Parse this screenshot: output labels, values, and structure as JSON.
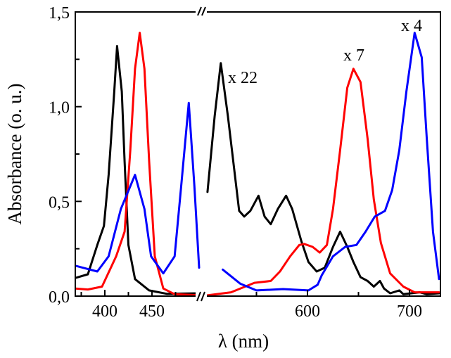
{
  "chart_data": {
    "type": "line",
    "title": "",
    "xlabel": "λ (nm)",
    "ylabel": "Absorbance (o. u.)",
    "ylim": [
      0,
      1.5
    ],
    "x_broken_axis": true,
    "xlim_segments": [
      [
        370,
        500
      ],
      [
        500,
        730
      ]
    ],
    "x_ticks": [
      {
        "value": 400,
        "label": "400"
      },
      {
        "value": 450,
        "label": "450"
      },
      {
        "value": 600,
        "label": "600"
      },
      {
        "value": 700,
        "label": "700"
      }
    ],
    "x_minor_ticks": [
      375,
      425,
      475,
      550,
      650
    ],
    "y_ticks": [
      {
        "value": 0,
        "label": "0,0"
      },
      {
        "value": 0.5,
        "label": "0,5"
      },
      {
        "value": 1.0,
        "label": "1,0"
      },
      {
        "value": 1.5,
        "label": "1,5"
      }
    ],
    "y_minor_ticks": [
      0.25,
      0.75,
      1.25
    ],
    "grid": false,
    "annotations": [
      {
        "text": "x 22",
        "series": "black"
      },
      {
        "text": "x 7",
        "series": "red"
      },
      {
        "text": "x 4",
        "series": "blue"
      }
    ],
    "series": [
      {
        "name": "black",
        "color": "#000000",
        "left": [
          [
            369,
            0.096
          ],
          [
            382,
            0.115
          ],
          [
            392,
            0.27
          ],
          [
            399,
            0.37
          ],
          [
            404,
            0.64
          ],
          [
            410,
            1.08
          ],
          [
            413,
            1.32
          ],
          [
            418,
            1.08
          ],
          [
            421,
            0.71
          ],
          [
            425,
            0.27
          ],
          [
            432,
            0.09
          ],
          [
            447,
            0.03
          ],
          [
            466,
            0.012
          ],
          [
            499,
            0.015
          ]
        ],
        "right": [
          [
            502,
            0.55
          ],
          [
            509,
            0.95
          ],
          [
            515,
            1.23
          ],
          [
            522,
            0.95
          ],
          [
            533,
            0.45
          ],
          [
            538,
            0.42
          ],
          [
            544,
            0.45
          ],
          [
            552,
            0.53
          ],
          [
            558,
            0.42
          ],
          [
            564,
            0.38
          ],
          [
            571,
            0.46
          ],
          [
            579,
            0.53
          ],
          [
            585,
            0.46
          ],
          [
            594,
            0.29
          ],
          [
            601,
            0.18
          ],
          [
            609,
            0.13
          ],
          [
            617,
            0.15
          ],
          [
            625,
            0.26
          ],
          [
            632,
            0.34
          ],
          [
            639,
            0.26
          ],
          [
            645,
            0.18
          ],
          [
            652,
            0.1
          ],
          [
            659,
            0.08
          ],
          [
            665,
            0.05
          ],
          [
            671,
            0.08
          ],
          [
            675,
            0.04
          ],
          [
            681,
            0.015
          ],
          [
            690,
            0.03
          ],
          [
            694,
            0.01
          ],
          [
            710,
            0.02
          ],
          [
            717,
            0.01
          ],
          [
            729,
            0.015
          ]
        ]
      },
      {
        "name": "red",
        "color": "#ff0000",
        "left": [
          [
            369,
            0.04
          ],
          [
            382,
            0.035
          ],
          [
            397,
            0.05
          ],
          [
            412,
            0.21
          ],
          [
            421,
            0.34
          ],
          [
            427,
            0.77
          ],
          [
            432,
            1.2
          ],
          [
            437,
            1.39
          ],
          [
            442,
            1.2
          ],
          [
            447,
            0.71
          ],
          [
            453,
            0.21
          ],
          [
            462,
            0.04
          ],
          [
            474,
            0.01
          ],
          [
            499,
            0.005
          ]
        ],
        "right": [
          [
            502,
            0.004
          ],
          [
            525,
            0.02
          ],
          [
            548,
            0.07
          ],
          [
            564,
            0.08
          ],
          [
            573,
            0.13
          ],
          [
            583,
            0.21
          ],
          [
            592,
            0.27
          ],
          [
            597,
            0.275
          ],
          [
            605,
            0.26
          ],
          [
            612,
            0.23
          ],
          [
            619,
            0.27
          ],
          [
            625,
            0.46
          ],
          [
            632,
            0.77
          ],
          [
            639,
            1.1
          ],
          [
            645,
            1.2
          ],
          [
            652,
            1.13
          ],
          [
            659,
            0.83
          ],
          [
            665,
            0.51
          ],
          [
            672,
            0.28
          ],
          [
            681,
            0.12
          ],
          [
            694,
            0.05
          ],
          [
            705,
            0.02
          ],
          [
            729,
            0.02
          ]
        ]
      },
      {
        "name": "blue",
        "color": "#0000ff",
        "left": [
          [
            369,
            0.16
          ],
          [
            392,
            0.13
          ],
          [
            404,
            0.21
          ],
          [
            417,
            0.46
          ],
          [
            432,
            0.64
          ],
          [
            442,
            0.46
          ],
          [
            449,
            0.21
          ],
          [
            462,
            0.12
          ],
          [
            474,
            0.21
          ],
          [
            481,
            0.58
          ],
          [
            489,
            1.02
          ],
          [
            495,
            0.58
          ],
          [
            500,
            0.15
          ]
        ],
        "right": [
          [
            517,
            0.14
          ],
          [
            534,
            0.066
          ],
          [
            550,
            0.03
          ],
          [
            576,
            0.037
          ],
          [
            601,
            0.03
          ],
          [
            610,
            0.06
          ],
          [
            614,
            0.11
          ],
          [
            625,
            0.21
          ],
          [
            637,
            0.26
          ],
          [
            648,
            0.27
          ],
          [
            657,
            0.34
          ],
          [
            666,
            0.42
          ],
          [
            676,
            0.45
          ],
          [
            683,
            0.56
          ],
          [
            690,
            0.77
          ],
          [
            697,
            1.08
          ],
          [
            705,
            1.39
          ],
          [
            712,
            1.26
          ],
          [
            717,
            0.83
          ],
          [
            723,
            0.34
          ],
          [
            729,
            0.09
          ]
        ]
      }
    ]
  }
}
